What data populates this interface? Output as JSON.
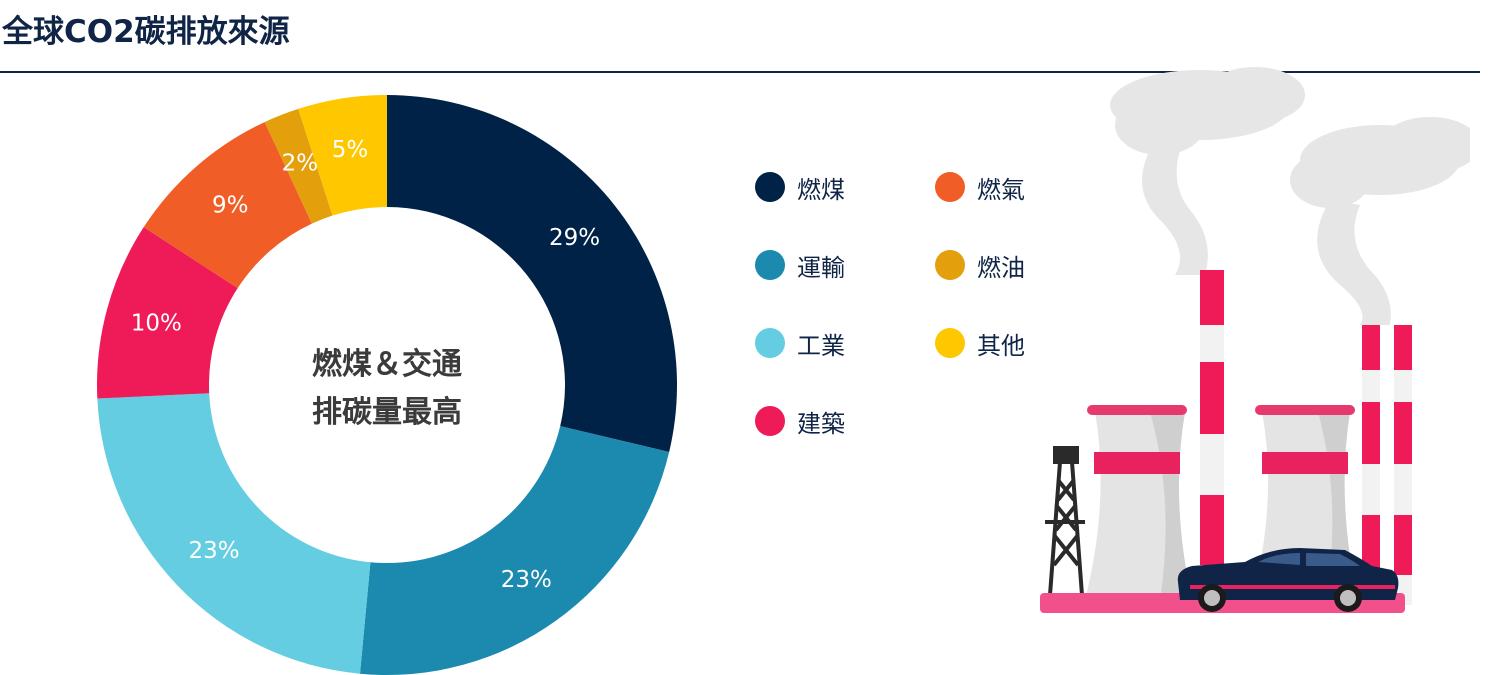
{
  "title": "全球CO2碳排放來源",
  "center_text": [
    "燃煤＆交通",
    "排碳量最高"
  ],
  "colors": {
    "coal": "#002247",
    "transport": "#1c8aae",
    "industry": "#64cde1",
    "building": "#ef1a58",
    "gas": "#f15d27",
    "oil": "#e39f0c",
    "other": "#ffc700"
  },
  "chart_data": {
    "type": "pie",
    "donut": true,
    "slices": [
      {
        "label": "燃煤",
        "value": 29,
        "display": "29%",
        "color": "#002247"
      },
      {
        "label": "運輸",
        "value": 23,
        "display": "23%",
        "color": "#1c8aae"
      },
      {
        "label": "工業",
        "value": 23,
        "display": "23%",
        "color": "#64cde1"
      },
      {
        "label": "建築",
        "value": 10,
        "display": "10%",
        "color": "#ef1a58"
      },
      {
        "label": "燃氣",
        "value": 9,
        "display": "9%",
        "color": "#f15d27"
      },
      {
        "label": "燃油",
        "value": 2,
        "display": "2%",
        "color": "#e39f0c"
      },
      {
        "label": "其他",
        "value": 5,
        "display": "5%",
        "color": "#ffc700"
      }
    ],
    "legend": [
      {
        "label": "燃煤",
        "color": "#002247"
      },
      {
        "label": "燃氣",
        "color": "#f15d27"
      },
      {
        "label": "運輸",
        "color": "#1c8aae"
      },
      {
        "label": "燃油",
        "color": "#e39f0c"
      },
      {
        "label": "工業",
        "color": "#64cde1"
      },
      {
        "label": "其他",
        "color": "#ffc700"
      },
      {
        "label": "建築",
        "color": "#ef1a58"
      }
    ],
    "legend_placement": "right"
  }
}
